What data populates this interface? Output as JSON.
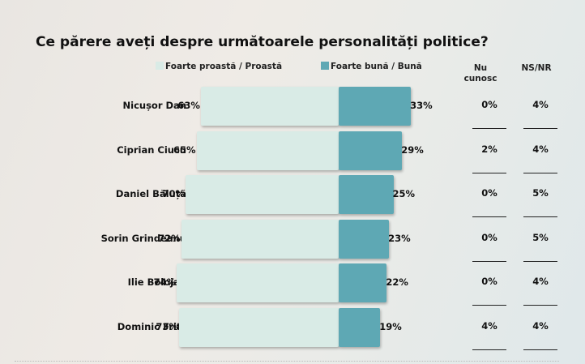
{
  "colors": {
    "negative": "#d9ebe6",
    "positive": "#5ea8b4"
  },
  "chart_data": {
    "type": "bar",
    "stacked": true,
    "orientation": "horizontal",
    "title": "Ce părere aveți despre următoarele personalități politice?",
    "categories": [
      "Nicușor Dan",
      "Ciprian Ciucu",
      "Daniel Băluță",
      "Sorin Grindeanu",
      "Ilie Bolojan",
      "Dominic Fritz"
    ],
    "series": [
      {
        "name": "Foarte proastă / Proastă",
        "values": [
          63,
          65,
          70,
          72,
          74,
          73
        ],
        "labels": [
          "63%",
          "65%",
          "70%",
          "72%",
          "74%",
          "73%"
        ]
      },
      {
        "name": "Foarte bună / Bună",
        "values": [
          33,
          29,
          25,
          23,
          22,
          19
        ],
        "labels": [
          "33%",
          "29%",
          "25%",
          "23%",
          "22%",
          "19%"
        ]
      }
    ],
    "extra_columns": [
      {
        "name": "Nu cunosc",
        "name_lines": [
          "Nu",
          "cunosc"
        ],
        "values": [
          "0%",
          "2%",
          "0%",
          "0%",
          "0%",
          "4%"
        ]
      },
      {
        "name": "NS/NR",
        "name_lines": [
          "NS/NR"
        ],
        "values": [
          "4%",
          "4%",
          "5%",
          "5%",
          "4%",
          "4%"
        ]
      }
    ],
    "legend": "top"
  }
}
